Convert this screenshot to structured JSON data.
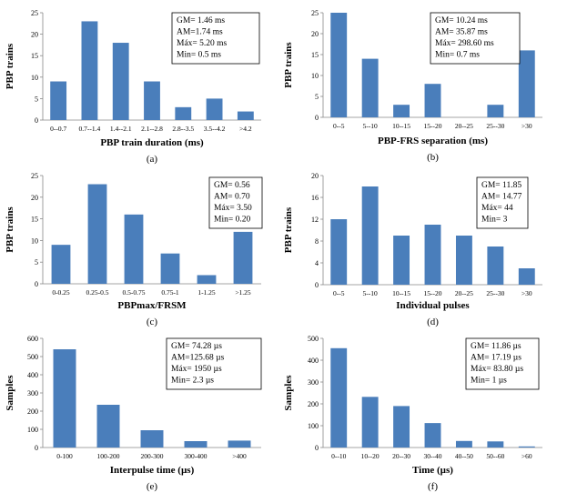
{
  "chart_data": [
    {
      "type": "bar",
      "categories": [
        "0--0.7",
        "0.7--1.4",
        "1.4--2.1",
        "2.1--2.8",
        "2.8--3.5",
        "3.5--4.2",
        ">4.2"
      ],
      "values": [
        9,
        23,
        18,
        9,
        3,
        5,
        2
      ],
      "xlabel": "PBP train duration (ms)",
      "ylabel": "PBP trains",
      "ylim": [
        0,
        25
      ],
      "yticks": [
        0,
        5,
        10,
        15,
        20,
        25
      ],
      "caption": "(a)",
      "stats": [
        "GM= 1.46 ms",
        "AM=1.74 ms",
        "Máx= 5.20 ms",
        "Min= 0.5 ms"
      ],
      "bar_color": "#4a7ebb"
    },
    {
      "type": "bar",
      "categories": [
        "0--5",
        "5--10",
        "10--15",
        "15--20",
        "20--25",
        "25--30",
        ">30"
      ],
      "values": [
        25,
        14,
        3,
        8,
        0,
        3,
        16
      ],
      "xlabel": "PBP-FRS separation (ms)",
      "ylabel": "PBP trains",
      "ylim": [
        0,
        25
      ],
      "yticks": [
        0,
        5,
        10,
        15,
        20,
        25
      ],
      "caption": "(b)",
      "stats": [
        "GM= 10.24 ms",
        "AM= 35.87 ms",
        "Máx= 298.60 ms",
        "Min= 0.7 ms"
      ],
      "bar_color": "#4a7ebb"
    },
    {
      "type": "bar",
      "categories": [
        "0-0.25",
        "0.25-0.5",
        "0.5-0.75",
        "0.75-1",
        "1-1.25",
        ">1.25"
      ],
      "values": [
        9,
        23,
        16,
        7,
        2,
        12
      ],
      "xlabel": "PBPmax/FRSM",
      "ylabel": "PBP trains",
      "ylim": [
        0,
        25
      ],
      "yticks": [
        0,
        5,
        10,
        15,
        20,
        25
      ],
      "caption": "(c)",
      "stats": [
        "GM= 0.56",
        "AM= 0.70",
        "Máx= 3.50",
        "Min= 0.20"
      ],
      "bar_color": "#4a7ebb"
    },
    {
      "type": "bar",
      "categories": [
        "0--5",
        "5--10",
        "10--15",
        "15--20",
        "20--25",
        "25--30",
        ">30"
      ],
      "values": [
        12,
        18,
        9,
        11,
        9,
        7,
        3
      ],
      "xlabel": "Individual pulses",
      "ylabel": "PBP trains",
      "ylim": [
        0,
        20
      ],
      "yticks": [
        0,
        4,
        8,
        12,
        16,
        20
      ],
      "caption": "(d)",
      "stats": [
        "GM= 11.85",
        "AM= 14.77",
        "Máx= 44",
        "Min= 3"
      ],
      "bar_color": "#4a7ebb"
    },
    {
      "type": "bar",
      "categories": [
        "0-100",
        "100-200",
        "200-300",
        "300-400",
        ">400"
      ],
      "values": [
        540,
        235,
        95,
        35,
        38
      ],
      "xlabel": "Interpulse time (µs)",
      "ylabel": "Samples",
      "ylim": [
        0,
        600
      ],
      "yticks": [
        0,
        100,
        200,
        300,
        400,
        500,
        600
      ],
      "caption": "(e)",
      "stats": [
        "GM= 74.28 µs",
        "AM=125.68 µs",
        "Máx= 1950 µs",
        "Min= 2.3 µs"
      ],
      "bar_color": "#4a7ebb"
    },
    {
      "type": "bar",
      "categories": [
        "0--10",
        "10--20",
        "20--30",
        "30--40",
        "40--50",
        "50--60",
        ">60"
      ],
      "values": [
        455,
        232,
        190,
        112,
        30,
        28,
        5
      ],
      "xlabel": "Time (µs)",
      "ylabel": "Samples",
      "ylim": [
        0,
        500
      ],
      "yticks": [
        0,
        100,
        200,
        300,
        400,
        500
      ],
      "caption": "(f)",
      "stats": [
        "GM= 11.86 µs",
        "AM= 17.19 µs",
        "Máx= 83.80 µs",
        "Min= 1 µs"
      ],
      "bar_color": "#4a7ebb"
    }
  ]
}
